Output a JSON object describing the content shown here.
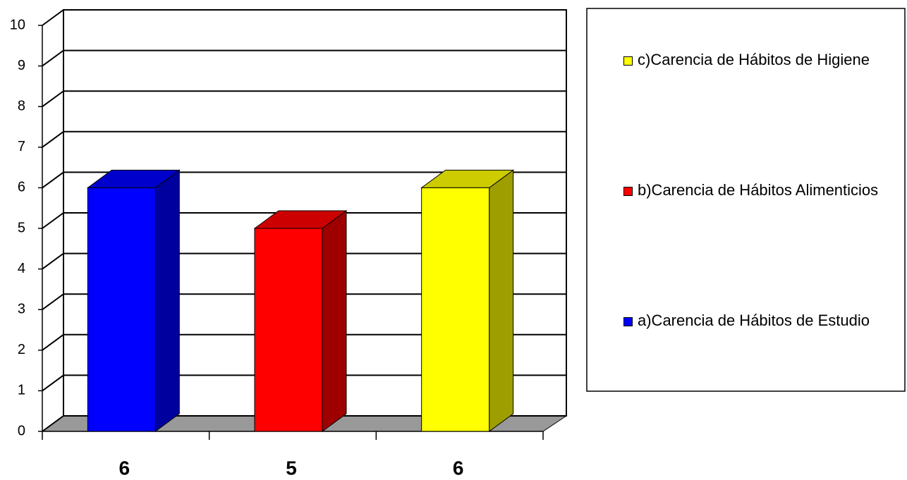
{
  "chart_data": {
    "type": "bar3d",
    "categories": [
      "6",
      "5",
      "6"
    ],
    "series": [
      {
        "name": "a)Carencia de Hábitos de Estudio",
        "color": "#0000ff",
        "values": [
          6,
          null,
          null
        ]
      },
      {
        "name": "b)Carencia de Hábitos Alimenticios",
        "color": "#ff0000",
        "values": [
          null,
          5,
          null
        ]
      },
      {
        "name": "c)Carencia de Hábitos de Higiene",
        "color": "#ffff00",
        "values": [
          null,
          null,
          6
        ]
      }
    ],
    "ylim": [
      0,
      10
    ],
    "yticks": [
      0,
      1,
      2,
      3,
      4,
      5,
      6,
      7,
      8,
      9,
      10
    ],
    "grid": true,
    "legend": "right"
  }
}
